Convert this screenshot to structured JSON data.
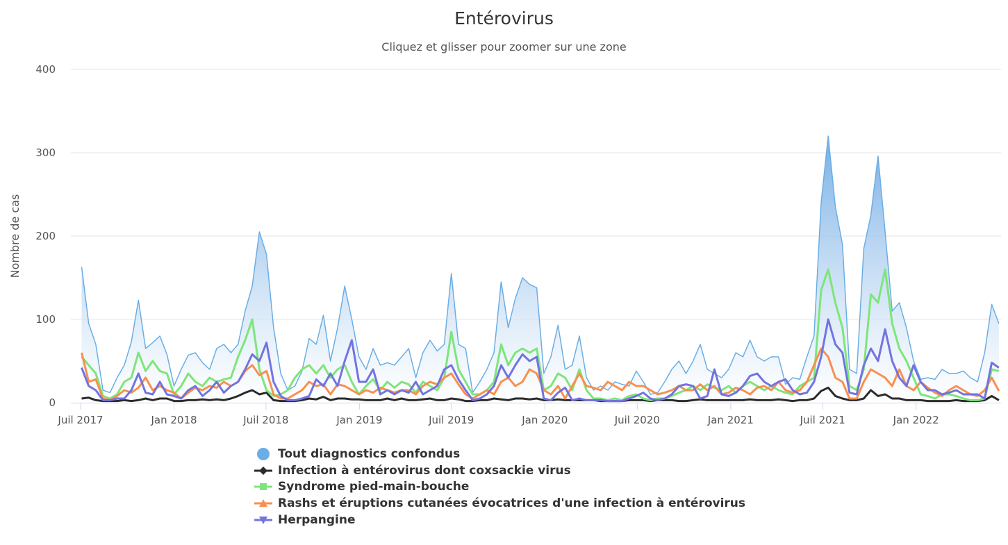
{
  "title": "Entérovirus",
  "subtitle": "Cliquez et glisser pour zoomer sur une zone",
  "chart_data": {
    "type": "area+line",
    "title": "Entérovirus",
    "subtitle": "Cliquez et glisser pour zoomer sur une zone",
    "xlabel": "",
    "ylabel": "Nombre de cas",
    "ylim": [
      0,
      400
    ],
    "yticks": [
      "0",
      "100",
      "200",
      "300",
      "400"
    ],
    "xticks": [
      {
        "date": "2017-07-01",
        "label": "Juil 2017"
      },
      {
        "date": "2018-01-01",
        "label": "Jan 2018"
      },
      {
        "date": "2018-07-01",
        "label": "Juil 2018"
      },
      {
        "date": "2019-01-01",
        "label": "Jan 2019"
      },
      {
        "date": "2019-07-01",
        "label": "Juil 2019"
      },
      {
        "date": "2020-01-01",
        "label": "Jan 2020"
      },
      {
        "date": "2020-07-01",
        "label": "Juil 2020"
      },
      {
        "date": "2021-01-01",
        "label": "Jan 2021"
      },
      {
        "date": "2021-07-01",
        "label": "Juil 2021"
      },
      {
        "date": "2022-01-01",
        "label": "Jan 2022"
      }
    ],
    "xlim": [
      "2017-07-01",
      "2022-07-01"
    ],
    "point_start": "2017-07-03",
    "point_interval_days": 14,
    "grid": true,
    "legend": "bottom-center",
    "series": [
      {
        "name": "Tout diagnostics confondus",
        "type": "area",
        "color": "#6aaee5",
        "symbol": "circle",
        "values": [
          163,
          95,
          70,
          15,
          12,
          30,
          45,
          73,
          123,
          65,
          72,
          80,
          58,
          20,
          40,
          57,
          60,
          48,
          40,
          65,
          70,
          60,
          70,
          110,
          140,
          205,
          178,
          90,
          35,
          15,
          20,
          38,
          77,
          70,
          105,
          50,
          90,
          140,
          100,
          55,
          40,
          65,
          45,
          48,
          45,
          55,
          65,
          30,
          60,
          75,
          62,
          70,
          155,
          70,
          65,
          12,
          25,
          40,
          60,
          145,
          90,
          125,
          150,
          142,
          138,
          35,
          55,
          93,
          40,
          45,
          80,
          30,
          15,
          20,
          15,
          25,
          22,
          20,
          38,
          25,
          10,
          12,
          25,
          40,
          50,
          35,
          50,
          70,
          40,
          35,
          30,
          40,
          60,
          55,
          75,
          55,
          50,
          55,
          55,
          22,
          30,
          28,
          55,
          80,
          240,
          320,
          235,
          190,
          40,
          35,
          185,
          225,
          296,
          205,
          110,
          120,
          90,
          50,
          28,
          30,
          28,
          40,
          35,
          35,
          38,
          30,
          25,
          60,
          118,
          95
        ]
      },
      {
        "name": "Infection à entérovirus dont coxsackie virus",
        "type": "line",
        "color": "#2b2b2b",
        "symbol": "diamond",
        "values": [
          5,
          6,
          3,
          2,
          2,
          2,
          3,
          2,
          3,
          5,
          3,
          5,
          5,
          2,
          2,
          3,
          3,
          4,
          3,
          4,
          3,
          5,
          8,
          12,
          15,
          10,
          12,
          3,
          2,
          2,
          2,
          3,
          5,
          4,
          7,
          3,
          5,
          5,
          4,
          4,
          3,
          3,
          3,
          5,
          3,
          5,
          3,
          3,
          4,
          5,
          3,
          3,
          5,
          4,
          2,
          2,
          3,
          3,
          5,
          4,
          3,
          5,
          5,
          4,
          5,
          3,
          3,
          4,
          3,
          3,
          3,
          3,
          3,
          2,
          2,
          2,
          2,
          3,
          3,
          3,
          2,
          3,
          3,
          3,
          2,
          2,
          3,
          4,
          3,
          3,
          3,
          3,
          3,
          3,
          4,
          3,
          3,
          3,
          4,
          3,
          2,
          3,
          3,
          5,
          14,
          18,
          8,
          5,
          3,
          3,
          5,
          15,
          8,
          10,
          5,
          5,
          3,
          3,
          3,
          2,
          2,
          2,
          2,
          3,
          2,
          2,
          2,
          3,
          8,
          3
        ]
      },
      {
        "name": "Syndrome pied-main-bouche",
        "type": "line",
        "color": "#7ee57a",
        "symbol": "square",
        "values": [
          55,
          45,
          35,
          8,
          5,
          10,
          25,
          30,
          60,
          38,
          50,
          38,
          35,
          10,
          20,
          35,
          25,
          20,
          30,
          25,
          28,
          30,
          55,
          75,
          100,
          40,
          15,
          8,
          10,
          15,
          30,
          40,
          45,
          35,
          45,
          30,
          40,
          45,
          25,
          10,
          20,
          28,
          15,
          25,
          18,
          25,
          22,
          12,
          25,
          20,
          15,
          30,
          85,
          40,
          25,
          10,
          10,
          15,
          25,
          70,
          45,
          60,
          65,
          60,
          65,
          15,
          20,
          35,
          30,
          15,
          40,
          15,
          5,
          5,
          3,
          5,
          3,
          8,
          10,
          5,
          3,
          5,
          5,
          8,
          12,
          15,
          20,
          15,
          22,
          18,
          15,
          20,
          12,
          20,
          25,
          20,
          15,
          20,
          15,
          12,
          10,
          20,
          25,
          30,
          135,
          160,
          120,
          90,
          20,
          15,
          40,
          130,
          120,
          160,
          95,
          65,
          50,
          30,
          10,
          8,
          5,
          10,
          10,
          8,
          5,
          3,
          3,
          5,
          40,
          38
        ]
      },
      {
        "name": "Rashs et éruptions cutanées évocatrices d'une infection à entérovirus",
        "type": "line",
        "color": "#f7904f",
        "symbol": "triangle",
        "values": [
          60,
          25,
          28,
          5,
          3,
          8,
          15,
          12,
          18,
          30,
          15,
          20,
          15,
          12,
          5,
          12,
          18,
          15,
          20,
          18,
          25,
          20,
          25,
          38,
          45,
          33,
          38,
          10,
          5,
          5,
          10,
          15,
          25,
          20,
          22,
          10,
          22,
          20,
          15,
          10,
          15,
          12,
          18,
          15,
          12,
          15,
          15,
          10,
          20,
          25,
          22,
          30,
          35,
          22,
          10,
          5,
          10,
          15,
          10,
          25,
          30,
          20,
          25,
          40,
          35,
          15,
          10,
          20,
          5,
          20,
          35,
          20,
          18,
          15,
          25,
          20,
          15,
          25,
          20,
          20,
          15,
          10,
          12,
          15,
          20,
          15,
          15,
          22,
          15,
          20,
          10,
          12,
          18,
          15,
          10,
          18,
          20,
          15,
          25,
          15,
          12,
          15,
          25,
          45,
          65,
          55,
          30,
          25,
          5,
          5,
          25,
          40,
          35,
          30,
          20,
          40,
          20,
          15,
          25,
          18,
          12,
          8,
          15,
          20,
          15,
          10,
          8,
          15,
          30,
          14
        ]
      },
      {
        "name": "Herpangine",
        "type": "line",
        "color": "#7373e0",
        "symbol": "triangle-down",
        "values": [
          42,
          20,
          15,
          3,
          3,
          5,
          5,
          15,
          35,
          12,
          10,
          25,
          10,
          8,
          5,
          15,
          20,
          8,
          15,
          25,
          12,
          20,
          25,
          40,
          58,
          50,
          72,
          25,
          8,
          3,
          3,
          5,
          8,
          28,
          20,
          35,
          20,
          50,
          75,
          25,
          25,
          40,
          10,
          15,
          10,
          15,
          12,
          25,
          10,
          15,
          20,
          40,
          45,
          28,
          15,
          3,
          5,
          10,
          20,
          45,
          30,
          45,
          58,
          50,
          55,
          5,
          3,
          12,
          18,
          3,
          5,
          3,
          3,
          3,
          2,
          2,
          2,
          5,
          8,
          12,
          5,
          3,
          5,
          10,
          20,
          22,
          20,
          5,
          8,
          40,
          10,
          8,
          12,
          20,
          32,
          35,
          25,
          20,
          25,
          28,
          15,
          10,
          12,
          25,
          55,
          100,
          70,
          60,
          12,
          10,
          45,
          65,
          50,
          88,
          50,
          30,
          20,
          45,
          25,
          15,
          15,
          10,
          12,
          15,
          10,
          10,
          10,
          5,
          48,
          42
        ]
      }
    ]
  }
}
